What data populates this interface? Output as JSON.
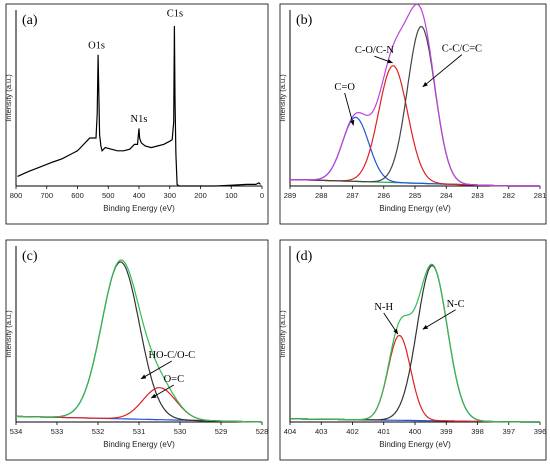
{
  "chart_data": [
    {
      "id": "a",
      "panel_label": "(a)",
      "type": "line",
      "xlabel": "Binding Energy (eV)",
      "ylabel": "Intensity (a.u.)",
      "xlim": [
        800,
        0
      ],
      "xticks": [
        800,
        700,
        600,
        500,
        400,
        300,
        200,
        100,
        0
      ],
      "series": [
        {
          "color": "#000000",
          "x": [
            795,
            760,
            720,
            680,
            650,
            620,
            600,
            585,
            570,
            560,
            548,
            540,
            536,
            533,
            531,
            528,
            524,
            520,
            510,
            490,
            470,
            450,
            430,
            415,
            405,
            402,
            400,
            398,
            393,
            380,
            360,
            340,
            320,
            300,
            292,
            287,
            285,
            283,
            280,
            276,
            270,
            250,
            200,
            150,
            100,
            50,
            20,
            10,
            5
          ],
          "y": [
            0.06,
            0.09,
            0.12,
            0.15,
            0.17,
            0.2,
            0.22,
            0.25,
            0.28,
            0.3,
            0.3,
            0.3,
            0.45,
            0.82,
            0.62,
            0.32,
            0.25,
            0.22,
            0.24,
            0.23,
            0.22,
            0.22,
            0.23,
            0.26,
            0.26,
            0.32,
            0.36,
            0.3,
            0.27,
            0.25,
            0.24,
            0.25,
            0.26,
            0.28,
            0.29,
            0.4,
            1.0,
            0.55,
            0.2,
            0.01,
            0.0,
            0.0,
            0.0,
            0.0,
            0.005,
            0.01,
            0.01,
            0.02,
            0.01
          ]
        }
      ],
      "annotations": [
        {
          "text": "O1s",
          "x": 538,
          "y": 0.86
        },
        {
          "text": "N1s",
          "x": 400,
          "y": 0.4
        },
        {
          "text": "C1s",
          "x": 283,
          "y": 1.06
        }
      ]
    },
    {
      "id": "b",
      "panel_label": "(b)",
      "type": "line",
      "xlabel": "Binding Energy (eV)",
      "ylabel": "Intensity (a.u.)",
      "xlim": [
        289,
        281
      ],
      "xticks": [
        289,
        288,
        287,
        286,
        285,
        284,
        283,
        282,
        281
      ],
      "baseline": {
        "x0": 288.8,
        "y0": 0.04,
        "x1": 282.0,
        "y1": 0.0
      },
      "peaks": [
        {
          "center": 286.9,
          "height": 0.4,
          "sigma": 0.42,
          "color": "#2255dd"
        },
        {
          "center": 285.7,
          "height": 0.73,
          "sigma": 0.46,
          "color": "#dd2222"
        },
        {
          "center": 284.8,
          "height": 0.98,
          "sigma": 0.44,
          "color": "#444444"
        }
      ],
      "sum_color": "#bb44dd",
      "baseline_color": "#22aa44",
      "annotations": [
        {
          "text": "C=O",
          "x": 287.25,
          "y": 0.6,
          "arrow_to": [
            286.97,
            0.38
          ]
        },
        {
          "text": "C-O/C-N",
          "x": 286.3,
          "y": 0.83,
          "arrow_to": [
            285.72,
            0.77
          ]
        },
        {
          "text": "C-C/C=C",
          "x": 283.5,
          "y": 0.84,
          "arrow_to": [
            284.75,
            0.62
          ]
        }
      ]
    },
    {
      "id": "c",
      "panel_label": "(c)",
      "type": "line",
      "xlabel": "Binding Energy (eV)",
      "ylabel": "Intensity (a.u.)",
      "xlim": [
        534,
        528
      ],
      "xticks": [
        534,
        533,
        532,
        531,
        530,
        529,
        528
      ],
      "baseline": {
        "x0": 534.0,
        "y0": 0.035,
        "x1": 528.0,
        "y1": 0.0
      },
      "peaks": [
        {
          "center": 531.45,
          "height": 0.98,
          "sigma": 0.46
        },
        {
          "center": 530.5,
          "height": 0.2,
          "sigma": 0.4
        }
      ],
      "peak_colors": [
        "#333333",
        "#dd2222"
      ],
      "sum_color": "#33bb55",
      "baseline_color": "#2255dd",
      "annotations": [
        {
          "text": "HO-C/O-C",
          "x": 530.2,
          "y": 0.4,
          "arrow_to": [
            530.95,
            0.27
          ]
        },
        {
          "text": "O=C",
          "x": 530.15,
          "y": 0.25,
          "arrow_to": [
            530.7,
            0.15
          ]
        }
      ]
    },
    {
      "id": "d",
      "panel_label": "(d)",
      "type": "line",
      "xlabel": "Binding Energy (eV)",
      "ylabel": "Intensity (a.u.)",
      "xlim": [
        404,
        396
      ],
      "xticks": [
        404,
        403,
        402,
        401,
        400,
        399,
        398,
        397,
        396
      ],
      "baseline": {
        "x0": 404.0,
        "y0": 0.02,
        "x1": 396.5,
        "y1": 0.0
      },
      "peaks": [
        {
          "center": 400.5,
          "height": 0.53,
          "sigma": 0.36
        },
        {
          "center": 399.45,
          "height": 0.97,
          "sigma": 0.48
        }
      ],
      "peak_colors": [
        "#dd2222",
        "#333333"
      ],
      "sum_color": "#33bb55",
      "baseline_color": "#2255dd",
      "annotations": [
        {
          "text": "N-H",
          "x": 401.0,
          "y": 0.7,
          "arrow_to": [
            400.55,
            0.55
          ]
        },
        {
          "text": "N-C",
          "x": 398.7,
          "y": 0.72,
          "arrow_to": [
            399.75,
            0.58
          ]
        }
      ]
    }
  ]
}
